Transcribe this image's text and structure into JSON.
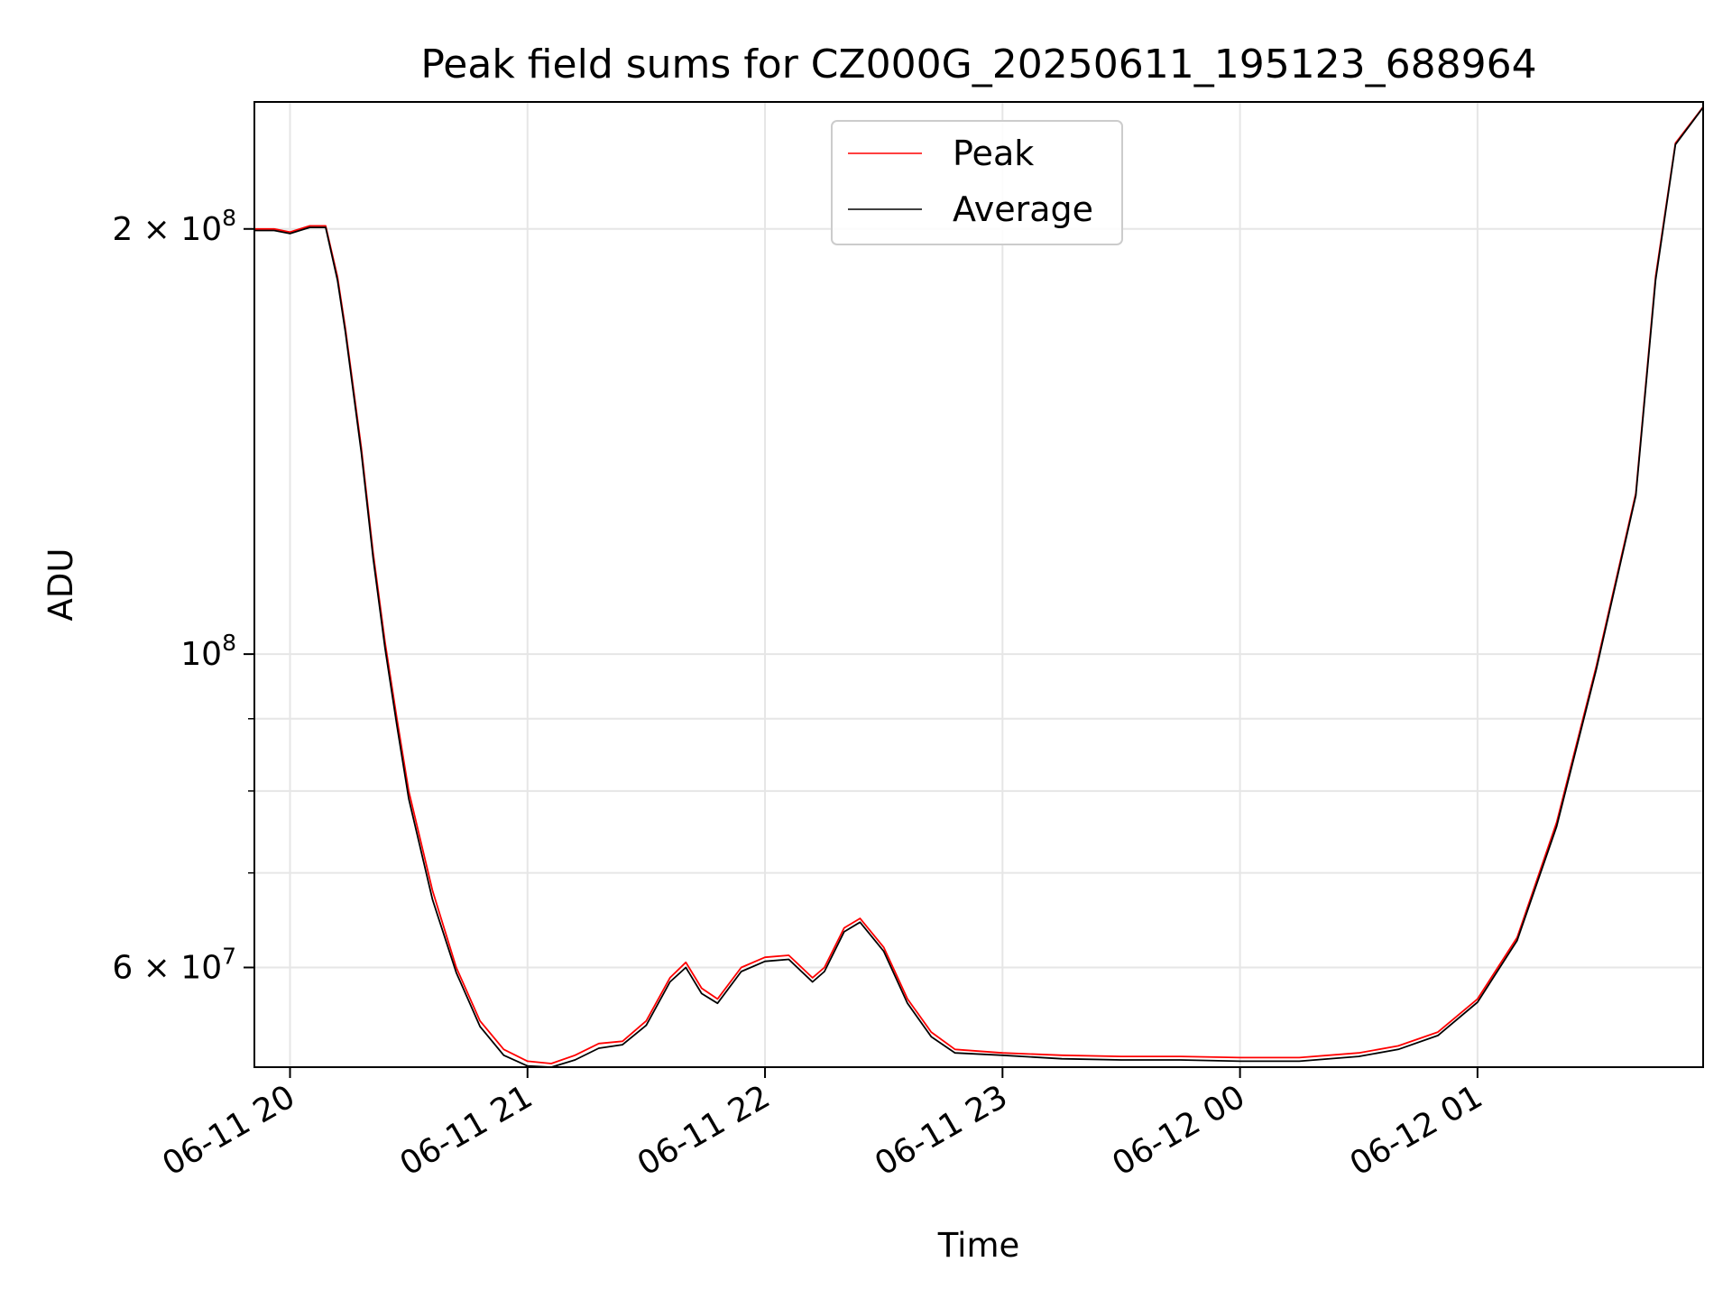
{
  "chart_data": {
    "type": "line",
    "title": "Peak field sums for CZ000G_20250611_195123_688964",
    "xlabel": "Time",
    "ylabel": "ADU",
    "x_unit": "hours",
    "xlim": [
      "06-11 19:51",
      "06-12 01:57"
    ],
    "ylim": [
      51000000,
      246000000
    ],
    "yscale": "log",
    "grid": true,
    "legend_position": "top-center",
    "x_ticks": [
      {
        "t": "06-11 20:00",
        "label": "06-11 20"
      },
      {
        "t": "06-11 21:00",
        "label": "06-11 21"
      },
      {
        "t": "06-11 22:00",
        "label": "06-11 22"
      },
      {
        "t": "06-11 23:00",
        "label": "06-11 23"
      },
      {
        "t": "06-12 00:00",
        "label": "06-12 00"
      },
      {
        "t": "06-12 01:00",
        "label": "06-12 01"
      }
    ],
    "y_major_ticks": [
      {
        "value": 200000000,
        "mantissa": "2",
        "exponent": "8"
      },
      {
        "value": 100000000,
        "mantissa": "",
        "exponent": "8"
      },
      {
        "value": 60000000,
        "mantissa": "6",
        "exponent": "7"
      }
    ],
    "y_minor_ticks": [
      90000000,
      80000000,
      70000000
    ],
    "series": [
      {
        "name": "Peak",
        "color": "#ff0000",
        "x": [
          "06-11 19:51",
          "06-11 19:56",
          "06-11 20:00",
          "06-11 20:05",
          "06-11 20:09",
          "06-11 20:12",
          "06-11 20:14",
          "06-11 20:18",
          "06-11 20:21",
          "06-11 20:24",
          "06-11 20:27",
          "06-11 20:30",
          "06-11 20:36",
          "06-11 20:42",
          "06-11 20:48",
          "06-11 20:54",
          "06-11 21:00",
          "06-11 21:06",
          "06-11 21:12",
          "06-11 21:18",
          "06-11 21:24",
          "06-11 21:30",
          "06-11 21:36",
          "06-11 21:40",
          "06-11 21:44",
          "06-11 21:48",
          "06-11 21:54",
          "06-11 22:00",
          "06-11 22:06",
          "06-11 22:12",
          "06-11 22:15",
          "06-11 22:20",
          "06-11 22:24",
          "06-11 22:30",
          "06-11 22:36",
          "06-11 22:42",
          "06-11 22:48",
          "06-11 23:00",
          "06-11 23:15",
          "06-11 23:30",
          "06-11 23:45",
          "06-12 00:00",
          "06-12 00:15",
          "06-12 00:30",
          "06-12 00:40",
          "06-12 00:50",
          "06-12 01:00",
          "06-12 01:10",
          "06-12 01:20",
          "06-12 01:30",
          "06-12 01:40",
          "06-12 01:45",
          "06-12 01:50",
          "06-12 01:57"
        ],
        "values": [
          200000000,
          200000000,
          199000000,
          201000000,
          201000000,
          185000000,
          170000000,
          140000000,
          118000000,
          102000000,
          90000000,
          80000000,
          68000000,
          60000000,
          55000000,
          52500000,
          51500000,
          51300000,
          52000000,
          53000000,
          53200000,
          55000000,
          59000000,
          60500000,
          58000000,
          57000000,
          60000000,
          61000000,
          61200000,
          59000000,
          60000000,
          64000000,
          65000000,
          62000000,
          57000000,
          54000000,
          52500000,
          52200000,
          52000000,
          51900000,
          51900000,
          51800000,
          51800000,
          52200000,
          52800000,
          54000000,
          57000000,
          63000000,
          76000000,
          98000000,
          130000000,
          185000000,
          230000000,
          244000000
        ]
      },
      {
        "name": "Average",
        "color": "#000000",
        "x": [
          "06-11 19:51",
          "06-11 19:56",
          "06-11 20:00",
          "06-11 20:05",
          "06-11 20:09",
          "06-11 20:12",
          "06-11 20:14",
          "06-11 20:18",
          "06-11 20:21",
          "06-11 20:24",
          "06-11 20:27",
          "06-11 20:30",
          "06-11 20:36",
          "06-11 20:42",
          "06-11 20:48",
          "06-11 20:54",
          "06-11 21:00",
          "06-11 21:06",
          "06-11 21:12",
          "06-11 21:18",
          "06-11 21:24",
          "06-11 21:30",
          "06-11 21:36",
          "06-11 21:40",
          "06-11 21:44",
          "06-11 21:48",
          "06-11 21:54",
          "06-11 22:00",
          "06-11 22:06",
          "06-11 22:12",
          "06-11 22:15",
          "06-11 22:20",
          "06-11 22:24",
          "06-11 22:30",
          "06-11 22:36",
          "06-11 22:42",
          "06-11 22:48",
          "06-11 23:00",
          "06-11 23:15",
          "06-11 23:30",
          "06-11 23:45",
          "06-12 00:00",
          "06-12 00:15",
          "06-12 00:30",
          "06-12 00:40",
          "06-12 00:50",
          "06-12 01:00",
          "06-12 01:10",
          "06-12 01:20",
          "06-12 01:30",
          "06-12 01:40",
          "06-12 01:45",
          "06-12 01:50",
          "06-12 01:57"
        ],
        "values": [
          199500000,
          199500000,
          198500000,
          200500000,
          200500000,
          184000000,
          169000000,
          139000000,
          117000000,
          101000000,
          89000000,
          79000000,
          67000000,
          59500000,
          54500000,
          52000000,
          51100000,
          51000000,
          51600000,
          52600000,
          52900000,
          54600000,
          58600000,
          60000000,
          57500000,
          56600000,
          59600000,
          60600000,
          60800000,
          58600000,
          59600000,
          63600000,
          64600000,
          61600000,
          56600000,
          53600000,
          52200000,
          52000000,
          51700000,
          51600000,
          51600000,
          51500000,
          51500000,
          51900000,
          52500000,
          53700000,
          56700000,
          62700000,
          75500000,
          97500000,
          129500000,
          184000000,
          229500000,
          243800000
        ]
      }
    ]
  }
}
